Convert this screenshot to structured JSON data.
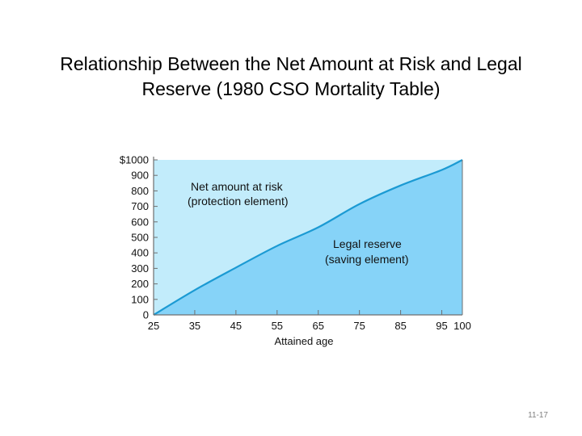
{
  "slide": {
    "title_line1": "Relationship Between the Net Amount at Risk and Legal",
    "title_line2": "Reserve (1980 CSO Mortality Table)",
    "page_number": "11-17"
  },
  "chart_data": {
    "type": "area",
    "title": "",
    "xlabel": "Attained age",
    "ylabel": "",
    "x_ticks": [
      25,
      35,
      45,
      55,
      65,
      75,
      85,
      95,
      100
    ],
    "y_ticks": [
      0,
      100,
      200,
      300,
      400,
      500,
      600,
      700,
      800,
      900,
      1000
    ],
    "y_tick_labels": [
      "0",
      "100",
      "200",
      "300",
      "400",
      "500",
      "600",
      "700",
      "800",
      "900",
      "$1000"
    ],
    "xlim": [
      25,
      100
    ],
    "ylim": [
      0,
      1000
    ],
    "grid": false,
    "series": [
      {
        "name": "Legal reserve (saving element)",
        "x": [
          25,
          35,
          45,
          55,
          65,
          75,
          85,
          95,
          100
        ],
        "values": [
          0,
          160,
          305,
          445,
          565,
          715,
          835,
          935,
          1000
        ]
      }
    ],
    "region_labels": {
      "net_amount_line1": "Net amount at risk",
      "net_amount_line2": "(protection element)",
      "legal_reserve_line1": "Legal reserve",
      "legal_reserve_line2": "(saving element)"
    },
    "colors": {
      "net_amount_area": "#c2ecfb",
      "legal_reserve_area": "#86d3f8",
      "curve": "#1b9ad3",
      "frame": "#6f6f6f",
      "text": "#111111"
    }
  }
}
